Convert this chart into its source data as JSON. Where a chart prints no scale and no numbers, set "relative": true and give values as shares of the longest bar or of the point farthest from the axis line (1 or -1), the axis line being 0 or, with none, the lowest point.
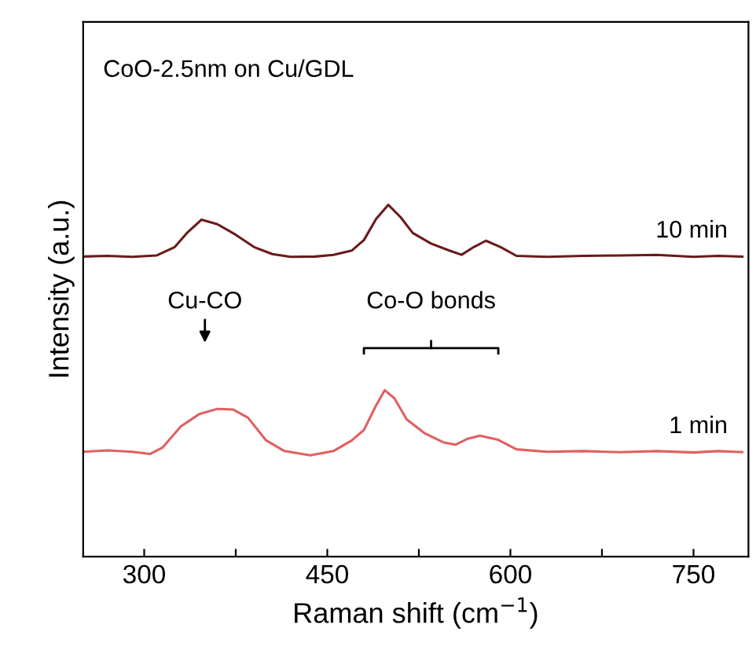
{
  "chart_data": {
    "type": "line",
    "relative": true,
    "xlabel": "Raman shift (cm$^{−1}$)",
    "ylabel": "Intensity (a.u.)",
    "xlim": [
      250,
      795
    ],
    "xticks": [
      300,
      {
        "value": 375,
        "label": null
      },
      450,
      {
        "value": 525,
        "label": null
      },
      600,
      {
        "value": 675,
        "label": null
      },
      750
    ],
    "tick_labels": "x",
    "grid": false,
    "legend": false,
    "marker": "none",
    "line_style": "solid",
    "annotations": [
      "CoO-2.5nm on Cu/GDL",
      "Cu-CO",
      "Co-O bonds"
    ],
    "series": [
      {
        "name": "10 min",
        "color": "#6b1a1a",
        "x": [
          250,
          270,
          290,
          310,
          325,
          335,
          347,
          360,
          375,
          390,
          405,
          420,
          440,
          455,
          470,
          480,
          490,
          500,
          510,
          520,
          535,
          550,
          560,
          570,
          580,
          592,
          605,
          630,
          660,
          690,
          720,
          750,
          770,
          790
        ],
        "values": [
          0.853,
          0.855,
          0.852,
          0.856,
          0.88,
          0.92,
          0.958,
          0.945,
          0.915,
          0.88,
          0.86,
          0.852,
          0.853,
          0.858,
          0.87,
          0.9,
          0.96,
          1,
          0.965,
          0.92,
          0.89,
          0.87,
          0.858,
          0.88,
          0.898,
          0.88,
          0.855,
          0.852,
          0.855,
          0.856,
          0.858,
          0.852,
          0.855,
          0.853
        ]
      },
      {
        "name": "1 min",
        "color": "#e06060",
        "x": [
          250,
          270,
          290,
          305,
          315,
          330,
          345,
          360,
          373,
          385,
          400,
          415,
          436,
          455,
          470,
          480,
          490,
          497,
          505,
          515,
          530,
          545,
          555,
          565,
          575,
          590,
          605,
          630,
          660,
          690,
          720,
          750,
          770,
          790
        ],
        "values": [
          0.298,
          0.302,
          0.298,
          0.292,
          0.31,
          0.37,
          0.405,
          0.42,
          0.418,
          0.395,
          0.33,
          0.3,
          0.288,
          0.3,
          0.33,
          0.36,
          0.43,
          0.473,
          0.45,
          0.39,
          0.35,
          0.325,
          0.318,
          0.335,
          0.344,
          0.332,
          0.305,
          0.298,
          0.3,
          0.297,
          0.3,
          0.296,
          0.3,
          0.297
        ]
      }
    ]
  }
}
